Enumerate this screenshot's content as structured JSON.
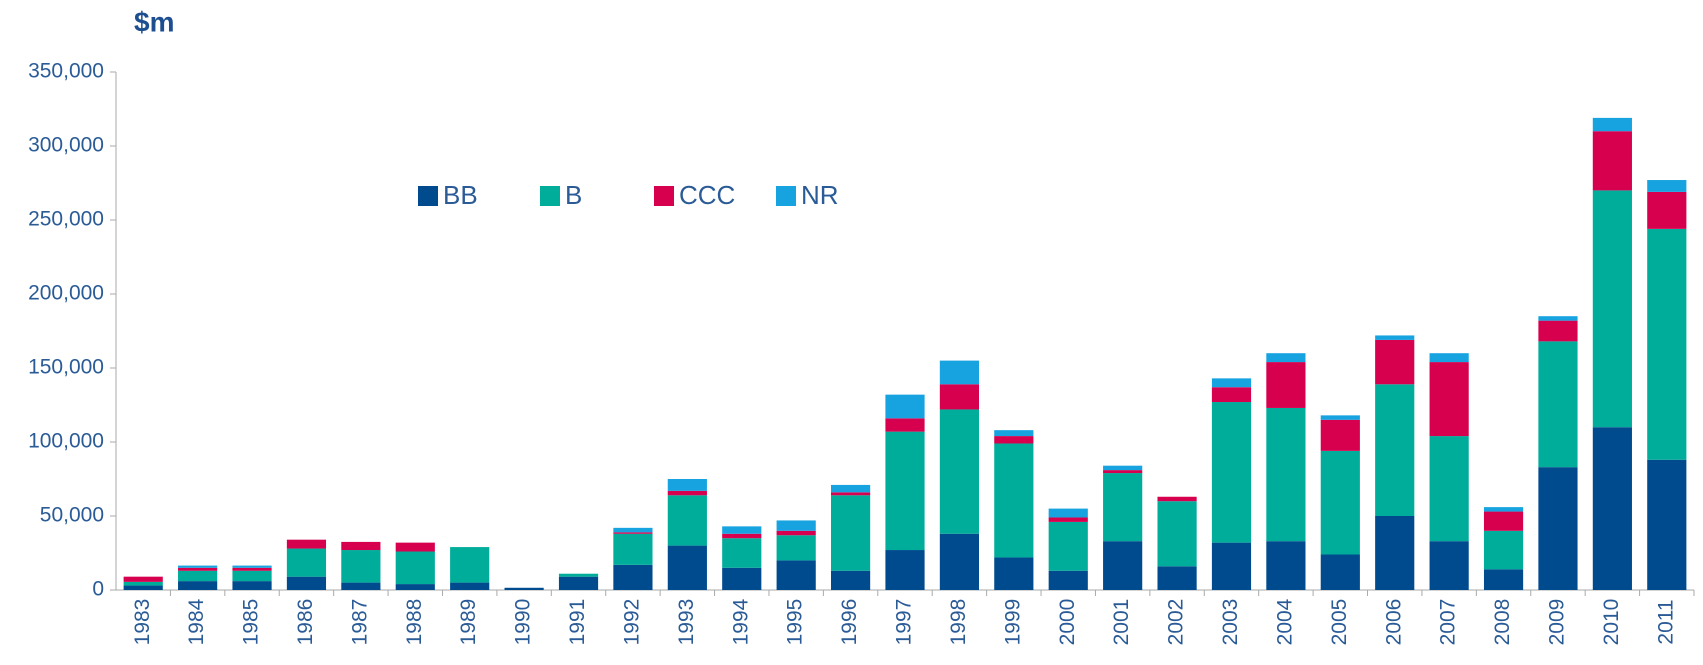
{
  "chart_data": {
    "type": "stacked-bar",
    "y_label": "$m",
    "categories": [
      "1983",
      "1984",
      "1985",
      "1986",
      "1987",
      "1988",
      "1989",
      "1990",
      "1991",
      "1992",
      "1993",
      "1994",
      "1995",
      "1996",
      "1997",
      "1998",
      "1999",
      "2000",
      "2001",
      "2002",
      "2003",
      "2004",
      "2005",
      "2006",
      "2007",
      "2008",
      "2009",
      "2010",
      "2011"
    ],
    "series": [
      {
        "name": "BB",
        "color": "#004b8d",
        "values": [
          3000,
          6000,
          6000,
          9000,
          5000,
          4000,
          5000,
          1500,
          9000,
          17000,
          30000,
          15000,
          20000,
          13000,
          27000,
          38000,
          22000,
          13000,
          33000,
          16000,
          32000,
          33000,
          24000,
          50000,
          33000,
          14000,
          83000,
          110000,
          88000
        ]
      },
      {
        "name": "B",
        "color": "#00ac9a",
        "values": [
          2500,
          7000,
          7000,
          19000,
          22000,
          22000,
          24000,
          0,
          2000,
          21000,
          34000,
          20000,
          17000,
          51000,
          80000,
          84000,
          77000,
          33000,
          46000,
          44000,
          95000,
          90000,
          70000,
          89000,
          71000,
          26000,
          85000,
          160000,
          156000
        ]
      },
      {
        "name": "CCC",
        "color": "#d6004f",
        "values": [
          3500,
          2000,
          2000,
          6000,
          5500,
          6000,
          0,
          0,
          0,
          1000,
          3000,
          3000,
          3000,
          2000,
          9000,
          17000,
          5000,
          3000,
          2000,
          3000,
          10000,
          31000,
          21000,
          30000,
          50000,
          13000,
          14000,
          40000,
          25000
        ]
      },
      {
        "name": "NR",
        "color": "#16a3e0",
        "values": [
          0,
          1500,
          1500,
          0,
          0,
          0,
          0,
          0,
          0,
          3000,
          8000,
          5000,
          7000,
          5000,
          16000,
          16000,
          4000,
          6000,
          3000,
          0,
          6000,
          6000,
          3000,
          3000,
          6000,
          3000,
          3000,
          9000,
          8000
        ]
      }
    ],
    "ylim": [
      0,
      350000
    ],
    "yticks": [
      {
        "value": 0,
        "label": "0"
      },
      {
        "value": 50000,
        "label": "50,000"
      },
      {
        "value": 100000,
        "label": "100,000"
      },
      {
        "value": 150000,
        "label": "150,000"
      },
      {
        "value": 200000,
        "label": "200,000"
      },
      {
        "value": 250000,
        "label": "250,000"
      },
      {
        "value": 300000,
        "label": "300,000"
      },
      {
        "value": 350000,
        "label": "350,000"
      }
    ],
    "legend": "top-left"
  }
}
